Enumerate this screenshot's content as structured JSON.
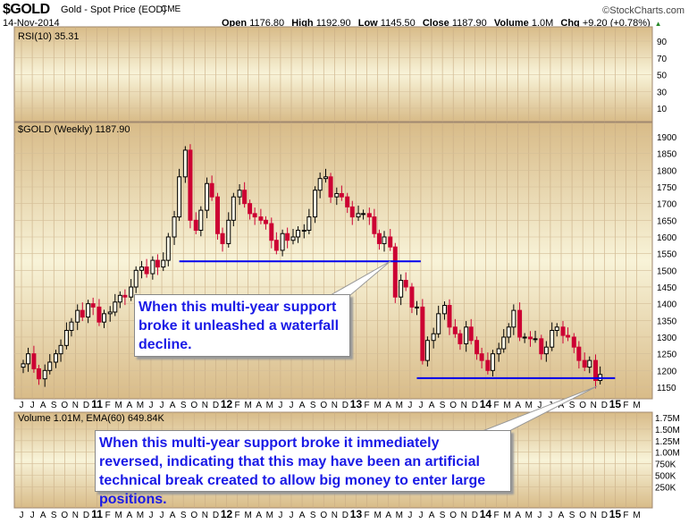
{
  "header": {
    "symbol": "$GOLD",
    "name": "Gold - Spot Price (EOD)",
    "exchange": "CME",
    "date": "14-Nov-2014",
    "watermark": "©StockCharts.com",
    "open_label": "Open",
    "open": "1176.80",
    "high_label": "High",
    "high": "1192.90",
    "low_label": "Low",
    "low": "1145.50",
    "close_label": "Close",
    "close": "1187.90",
    "volume_label": "Volume",
    "volume": "1.0M",
    "chg_label": "Chg",
    "chg": "+9.20 (+0.78%)",
    "chg_arrow": "▲"
  },
  "annotations": {
    "callout1": "When this multi-year support broke it unleashed a waterfall decline.",
    "callout2": "When this multi-year support broke it immediately reversed, indicating that this may have been an artificial technical break created to allow big money to enter large positions."
  },
  "colors": {
    "up": "#000000",
    "down": "#cc0033",
    "support": "#0000ee",
    "panel_edge": "#d8bb88",
    "panel_mid": "#f8f3d8"
  },
  "chart_data": [
    {
      "type": "line",
      "panel": "rsi",
      "legend": "RSI(10) 35.31",
      "yticks": [
        90,
        70,
        50,
        30,
        10
      ],
      "ylim": [
        0,
        100
      ]
    },
    {
      "type": "candlestick",
      "panel": "price",
      "legend": "$GOLD (Weekly) 1187.90",
      "ylim": [
        1120,
        1950
      ],
      "yticks": [
        1150,
        1200,
        1250,
        1300,
        1350,
        1400,
        1450,
        1500,
        1550,
        1600,
        1650,
        1700,
        1750,
        1800,
        1850,
        1900
      ],
      "xlim": [
        "2010-06-01",
        "2015-03-31"
      ],
      "x": [
        "2010-06-01",
        "2010-06-15",
        "2010-07-01",
        "2010-07-15",
        "2010-08-01",
        "2010-08-15",
        "2010-09-01",
        "2010-09-15",
        "2010-10-01",
        "2010-10-15",
        "2010-11-01",
        "2010-11-15",
        "2010-12-01",
        "2010-12-15",
        "2011-01-01",
        "2011-01-15",
        "2011-02-01",
        "2011-02-15",
        "2011-03-01",
        "2011-03-15",
        "2011-04-01",
        "2011-04-15",
        "2011-05-01",
        "2011-05-15",
        "2011-06-01",
        "2011-06-15",
        "2011-07-01",
        "2011-07-15",
        "2011-08-01",
        "2011-08-15",
        "2011-09-01",
        "2011-09-15",
        "2011-10-01",
        "2011-10-15",
        "2011-11-01",
        "2011-11-15",
        "2011-12-01",
        "2011-12-15",
        "2012-01-01",
        "2012-01-15",
        "2012-02-01",
        "2012-02-15",
        "2012-03-01",
        "2012-03-15",
        "2012-04-01",
        "2012-04-15",
        "2012-05-01",
        "2012-05-15",
        "2012-06-01",
        "2012-06-15",
        "2012-07-01",
        "2012-07-15",
        "2012-08-01",
        "2012-08-15",
        "2012-09-01",
        "2012-09-15",
        "2012-10-01",
        "2012-10-15",
        "2012-11-01",
        "2012-11-15",
        "2012-12-01",
        "2012-12-15",
        "2013-01-01",
        "2013-01-15",
        "2013-02-01",
        "2013-02-15",
        "2013-03-01",
        "2013-03-15",
        "2013-04-01",
        "2013-04-15",
        "2013-05-01",
        "2013-05-15",
        "2013-06-01",
        "2013-06-15",
        "2013-07-01",
        "2013-07-15",
        "2013-08-01",
        "2013-08-15",
        "2013-09-01",
        "2013-09-15",
        "2013-10-01",
        "2013-10-15",
        "2013-11-01",
        "2013-11-15",
        "2013-12-01",
        "2013-12-15",
        "2014-01-01",
        "2014-01-15",
        "2014-02-01",
        "2014-02-15",
        "2014-03-01",
        "2014-03-15",
        "2014-04-01",
        "2014-04-15",
        "2014-05-01",
        "2014-05-15",
        "2014-06-01",
        "2014-06-15",
        "2014-07-01",
        "2014-07-15",
        "2014-08-01",
        "2014-08-15",
        "2014-09-01",
        "2014-09-15",
        "2014-10-01",
        "2014-10-15",
        "2014-11-01",
        "2014-11-14"
      ],
      "close": [
        1220,
        1250,
        1205,
        1175,
        1200,
        1225,
        1250,
        1275,
        1320,
        1345,
        1380,
        1360,
        1400,
        1390,
        1345,
        1370,
        1375,
        1405,
        1425,
        1420,
        1450,
        1500,
        1510,
        1490,
        1530,
        1510,
        1530,
        1600,
        1660,
        1780,
        1860,
        1650,
        1620,
        1680,
        1760,
        1720,
        1610,
        1580,
        1650,
        1720,
        1740,
        1700,
        1670,
        1660,
        1650,
        1640,
        1590,
        1560,
        1610,
        1590,
        1600,
        1620,
        1620,
        1660,
        1740,
        1775,
        1780,
        1720,
        1730,
        1720,
        1690,
        1660,
        1670,
        1670,
        1660,
        1610,
        1580,
        1600,
        1570,
        1420,
        1470,
        1450,
        1390,
        1390,
        1230,
        1290,
        1310,
        1370,
        1395,
        1330,
        1310,
        1280,
        1330,
        1290,
        1250,
        1230,
        1200,
        1250,
        1265,
        1300,
        1330,
        1380,
        1300,
        1300,
        1295,
        1295,
        1250,
        1270,
        1320,
        1330,
        1305,
        1300,
        1270,
        1230,
        1210,
        1230,
        1170,
        1188
      ],
      "support_levels": [
        {
          "value": 1527,
          "from": "2011-08-20",
          "to": "2013-07-01"
        },
        {
          "value": 1177,
          "from": "2013-06-20",
          "to": "2014-12-31"
        }
      ],
      "xtick_labels": [
        "J",
        "J",
        "A",
        "S",
        "O",
        "N",
        "D",
        "11",
        "F",
        "M",
        "A",
        "M",
        "J",
        "J",
        "A",
        "S",
        "O",
        "N",
        "D",
        "12",
        "F",
        "M",
        "A",
        "M",
        "J",
        "J",
        "A",
        "S",
        "O",
        "N",
        "D",
        "13",
        "F",
        "M",
        "A",
        "M",
        "J",
        "J",
        "A",
        "S",
        "O",
        "N",
        "D",
        "14",
        "F",
        "M",
        "A",
        "M",
        "J",
        "J",
        "A",
        "S",
        "O",
        "N",
        "D",
        "15",
        "F",
        "M"
      ]
    },
    {
      "type": "bar",
      "panel": "volume",
      "legend": "Volume 1.01M, EMA(60) 649.84K",
      "yticks": [
        "1.75M",
        "1.50M",
        "1.25M",
        "1.00M",
        "750K",
        "500K",
        "250K"
      ]
    }
  ]
}
